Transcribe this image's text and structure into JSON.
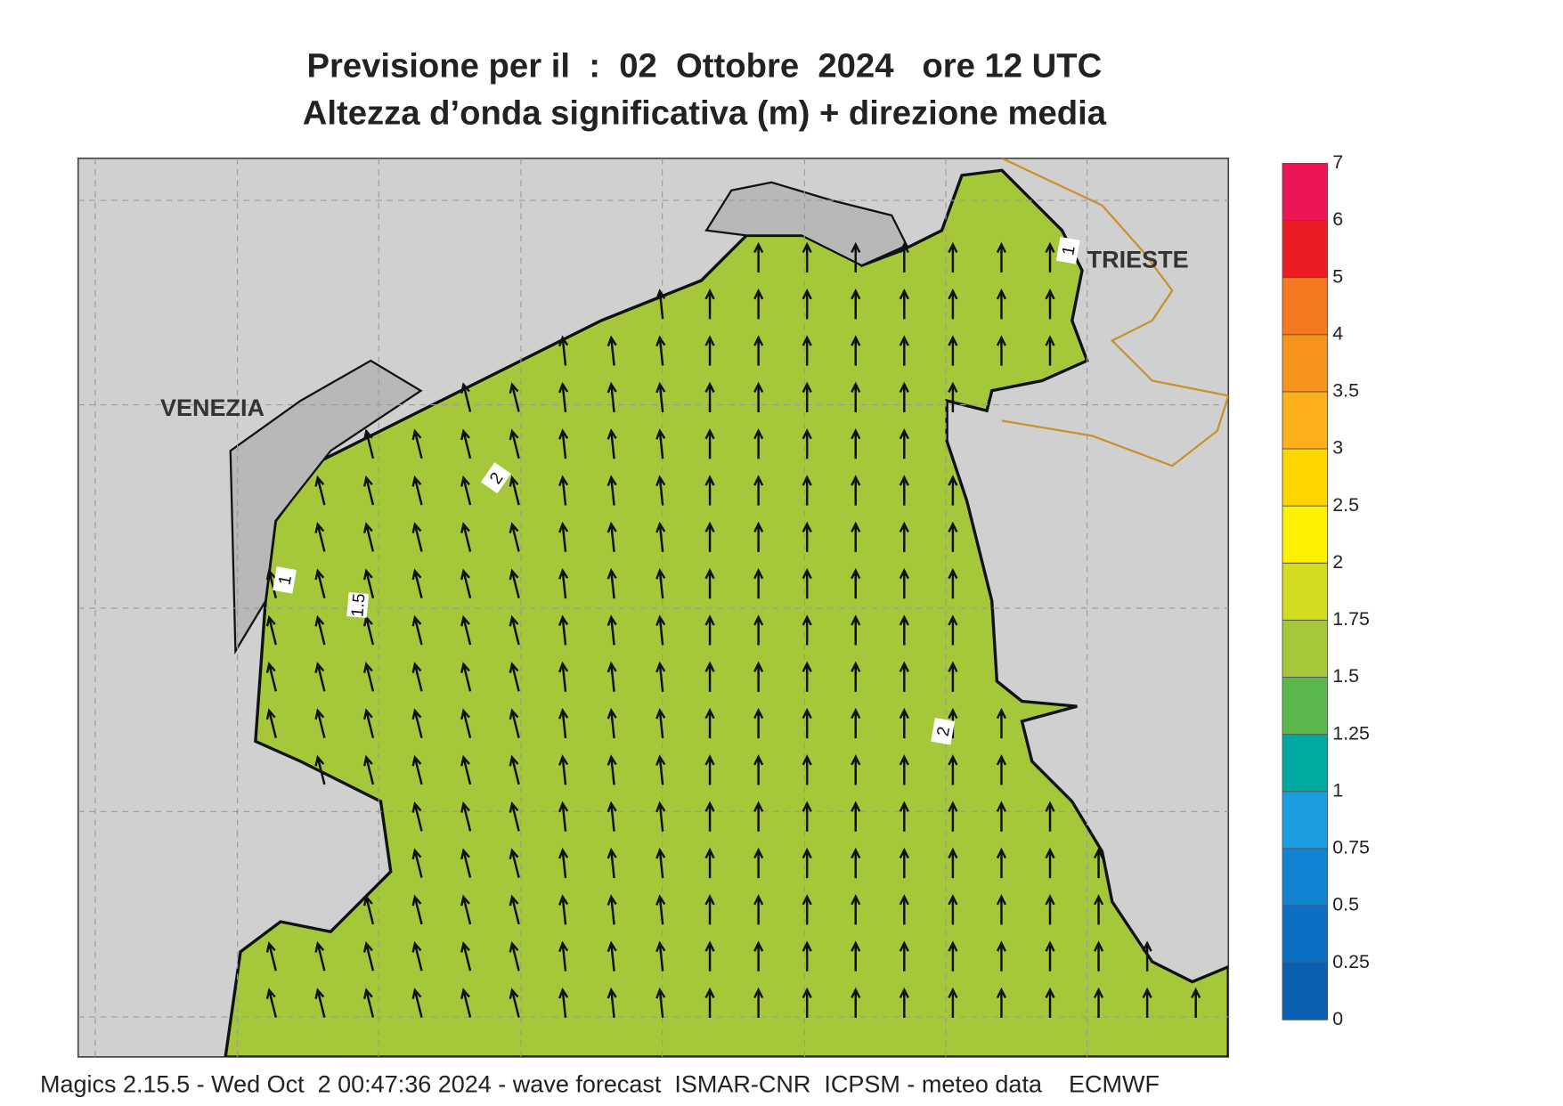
{
  "title": [
    "Previsione per il  :  02  Ottobre  2024   ore 12 UTC",
    "Altezza d’onda significativa (m) + direzione media"
  ],
  "places": [
    "VENEZIA",
    "TRIESTE"
  ],
  "contour_labels": [
    "1",
    "1.5",
    "2",
    "2",
    "1"
  ],
  "colorbar": {
    "ticks": [
      0,
      0.25,
      0.5,
      0.75,
      1,
      1.25,
      1.5,
      1.75,
      2,
      2.5,
      3,
      3.5,
      4,
      5,
      6,
      7
    ],
    "colors": [
      "#0a5fb0",
      "#0b70c4",
      "#1283d2",
      "#1b9de2",
      "#00aaa0",
      "#5ab84a",
      "#a4c83a",
      "#d4dc20",
      "#fff200",
      "#ffd500",
      "#fbb01c",
      "#f7941d",
      "#f47920",
      "#ec1c24",
      "#ec1556"
    ]
  },
  "footer": "Magics 2.15.5 - Wed Oct  2 00:47:36 2024 - wave forecast  ISMAR-CNR  ICPSM - meteo data    ECMWF"
}
